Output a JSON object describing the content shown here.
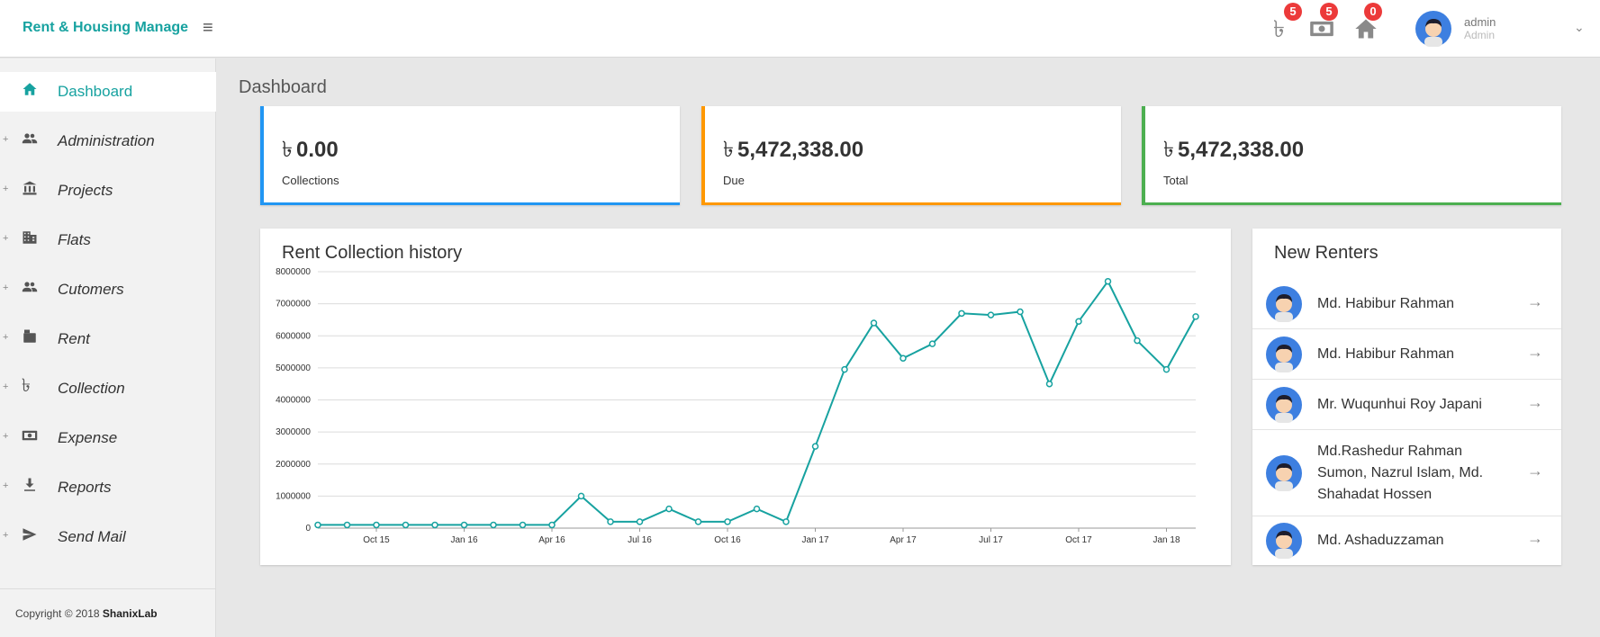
{
  "app": {
    "brand": "Rent & Housing Manage",
    "currency_symbol": "৳",
    "accent_color": "#17a2a0"
  },
  "header": {
    "notifications": [
      {
        "icon": "taka-icon",
        "count": "5"
      },
      {
        "icon": "money-icon",
        "count": "5"
      },
      {
        "icon": "home-icon",
        "count": "0"
      }
    ],
    "user": {
      "name": "admin",
      "role": "Admin"
    }
  },
  "sidebar": {
    "items": [
      {
        "label": "Dashboard",
        "icon": "home-icon",
        "active": true
      },
      {
        "label": "Administration",
        "icon": "people-icon"
      },
      {
        "label": "Projects",
        "icon": "bank-icon"
      },
      {
        "label": "Flats",
        "icon": "building-icon"
      },
      {
        "label": "Cutomers",
        "icon": "people-icon"
      },
      {
        "label": "Rent",
        "icon": "briefcase-icon"
      },
      {
        "label": "Collection",
        "icon": "taka-icon"
      },
      {
        "label": "Expense",
        "icon": "money-icon"
      },
      {
        "label": "Reports",
        "icon": "download-icon"
      },
      {
        "label": "Send Mail",
        "icon": "send-icon"
      }
    ],
    "copyright_prefix": "Copyright © 2018",
    "copyright_brand": "ShanixLab"
  },
  "page": {
    "title": "Dashboard"
  },
  "stats": [
    {
      "value": "0.00",
      "label": "Collections",
      "color": "#2196f3"
    },
    {
      "value": "5,472,338.00",
      "label": "Due",
      "color": "#ff9800"
    },
    {
      "value": "5,472,338.00",
      "label": "Total",
      "color": "#4caf50"
    }
  ],
  "history_panel": {
    "title": "Rent Collection history"
  },
  "chart_data": {
    "type": "line",
    "title": "Rent Collection history",
    "xlabel": "",
    "ylabel": "",
    "ylim": [
      0,
      8000000
    ],
    "yticks": [
      "0",
      "1000000",
      "2000000",
      "3000000",
      "4000000",
      "5000000",
      "6000000",
      "7000000",
      "8000000"
    ],
    "xticks": [
      {
        "x": 2,
        "label": "Oct 15"
      },
      {
        "x": 5,
        "label": "Jan 16"
      },
      {
        "x": 8,
        "label": "Apr 16"
      },
      {
        "x": 11,
        "label": "Jul 16"
      },
      {
        "x": 14,
        "label": "Oct 16"
      },
      {
        "x": 17,
        "label": "Jan 17"
      },
      {
        "x": 20,
        "label": "Apr 17"
      },
      {
        "x": 23,
        "label": "Jul 17"
      },
      {
        "x": 26,
        "label": "Oct 17"
      },
      {
        "x": 29,
        "label": "Jan 18"
      }
    ],
    "grid": true,
    "series": [
      {
        "color": "#17a2a0",
        "values": [
          100000,
          100000,
          100000,
          100000,
          100000,
          100000,
          100000,
          100000,
          100000,
          1000000,
          200000,
          200000,
          600000,
          200000,
          200000,
          600000,
          200000,
          2550000,
          4950000,
          6400000,
          5300000,
          5750000,
          6700000,
          6650000,
          6750000,
          4500000,
          6450000,
          7700000,
          5850000,
          4950000,
          6600000
        ]
      }
    ]
  },
  "renters_panel": {
    "title": "New Renters",
    "items": [
      {
        "name": "Md. Habibur Rahman"
      },
      {
        "name": "Md. Habibur Rahman"
      },
      {
        "name": "Mr. Wuqunhui Roy Japani"
      },
      {
        "name": "Md.Rashedur Rahman Sumon, Nazrul Islam, Md. Shahadat Hossen"
      },
      {
        "name": "Md. Ashaduzzaman"
      }
    ]
  }
}
